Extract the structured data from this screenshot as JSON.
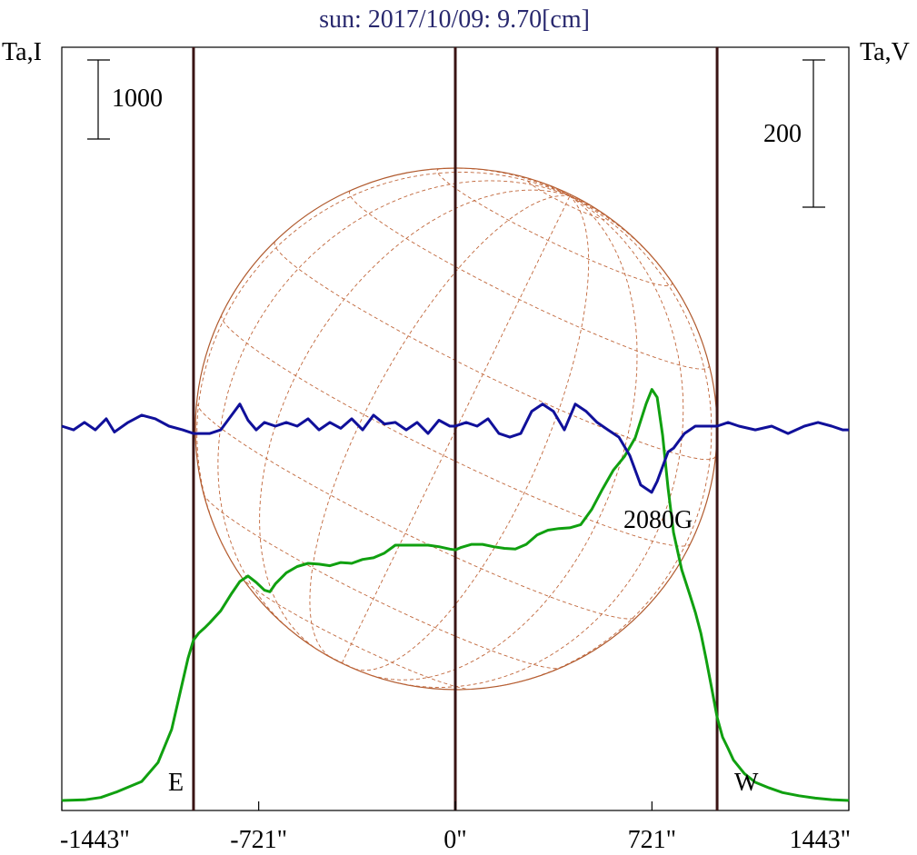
{
  "chart_data": {
    "type": "line",
    "title": "sun: 2017/10/09: 9.70[cm]",
    "left_axis_label": "Ta,I",
    "right_axis_label": "Ta,V",
    "left_scale_bar": "1000",
    "right_scale_bar": "200",
    "x_ticks": [
      -1443,
      -721,
      0,
      721,
      1443
    ],
    "x_tick_labels": [
      "-1443\"",
      "-721\"",
      "0\"",
      "721\"",
      "1443\""
    ],
    "xlim": [
      -1443,
      1443
    ],
    "limb_markers": [
      -960,
      0,
      960
    ],
    "limb_labels": {
      "east": "E",
      "west": "W"
    },
    "annotation": "2080G",
    "series": [
      {
        "key": "I",
        "color": "#10a010",
        "x": [
          -1443,
          -1360,
          -1300,
          -1240,
          -1150,
          -1090,
          -1040,
          -1000,
          -980,
          -960,
          -940,
          -920,
          -900,
          -860,
          -820,
          -790,
          -760,
          -730,
          -700,
          -680,
          -660,
          -620,
          -580,
          -540,
          -500,
          -460,
          -420,
          -380,
          -340,
          -300,
          -260,
          -220,
          -180,
          -140,
          -100,
          -60,
          -20,
          0,
          20,
          60,
          100,
          140,
          180,
          220,
          260,
          300,
          340,
          380,
          420,
          460,
          500,
          540,
          580,
          620,
          660,
          700,
          721,
          740,
          760,
          780,
          800,
          830,
          860,
          880,
          900,
          920,
          940,
          960,
          980,
          1000,
          1020,
          1060,
          1100,
          1150,
          1200,
          1260,
          1320,
          1380,
          1443
        ],
        "y": [
          0,
          8,
          38,
          110,
          240,
          480,
          900,
          1500,
          1800,
          2030,
          2120,
          2180,
          2250,
          2400,
          2620,
          2770,
          2840,
          2760,
          2660,
          2640,
          2740,
          2880,
          2960,
          3000,
          2990,
          2970,
          3010,
          3000,
          3050,
          3070,
          3130,
          3230,
          3230,
          3230,
          3230,
          3210,
          3180,
          3170,
          3200,
          3240,
          3240,
          3210,
          3190,
          3180,
          3240,
          3360,
          3420,
          3440,
          3450,
          3490,
          3680,
          3940,
          4180,
          4350,
          4590,
          5020,
          5200,
          5100,
          4620,
          3950,
          3390,
          2920,
          2600,
          2380,
          2120,
          1780,
          1420,
          1050,
          800,
          660,
          510,
          340,
          230,
          160,
          100,
          60,
          30,
          10,
          0
        ]
      },
      {
        "key": "V",
        "color": "#10109a",
        "x": [
          -1443,
          -1400,
          -1360,
          -1320,
          -1280,
          -1250,
          -1200,
          -1150,
          -1100,
          -1050,
          -1000,
          -960,
          -930,
          -900,
          -860,
          -820,
          -790,
          -760,
          -730,
          -700,
          -660,
          -620,
          -580,
          -540,
          -500,
          -460,
          -420,
          -380,
          -340,
          -300,
          -260,
          -220,
          -180,
          -140,
          -100,
          -60,
          -20,
          0,
          40,
          80,
          120,
          160,
          200,
          240,
          280,
          320,
          360,
          400,
          440,
          480,
          520,
          560,
          600,
          640,
          680,
          720,
          740,
          760,
          780,
          800,
          840,
          880,
          920,
          960,
          1000,
          1040,
          1100,
          1160,
          1220,
          1280,
          1330,
          1380,
          1420,
          1443
        ],
        "y": [
          0,
          -5,
          5,
          -5,
          10,
          -8,
          5,
          15,
          10,
          0,
          -5,
          -10,
          -10,
          -10,
          -5,
          15,
          30,
          8,
          -5,
          5,
          0,
          5,
          0,
          10,
          -5,
          5,
          -3,
          10,
          -5,
          15,
          3,
          5,
          -5,
          5,
          -10,
          8,
          0,
          0,
          5,
          0,
          10,
          -10,
          -15,
          -10,
          20,
          30,
          20,
          -5,
          30,
          20,
          5,
          -5,
          -15,
          -40,
          -80,
          -90,
          -75,
          -55,
          -35,
          -30,
          -10,
          0,
          0,
          0,
          5,
          0,
          -5,
          0,
          -10,
          0,
          5,
          0,
          -5,
          -5
        ]
      }
    ]
  }
}
